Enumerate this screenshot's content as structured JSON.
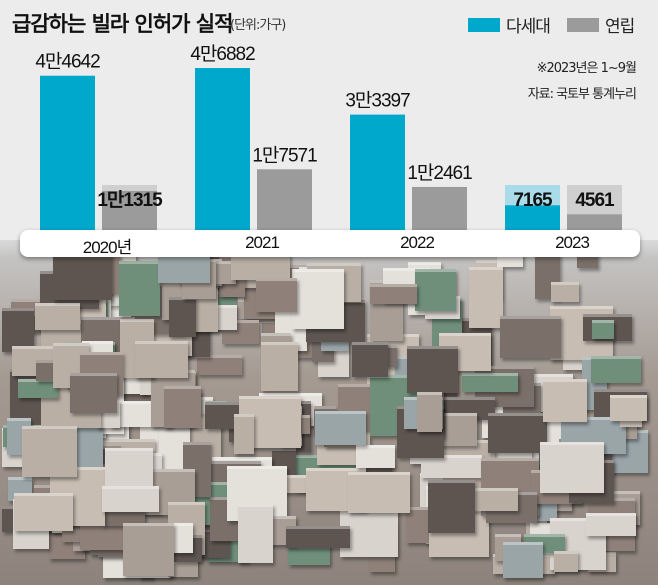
{
  "chart_data": {
    "type": "bar",
    "title": "급감하는 빌라 인허가 실적",
    "unit": "(단위:가구)",
    "categories": [
      "2020년",
      "2021",
      "2022",
      "2023"
    ],
    "series": [
      {
        "name": "다세대",
        "color": "#00a8cc",
        "values": [
          44642,
          46882,
          33397,
          7165
        ],
        "labels": [
          "4만4642",
          "4만6882",
          "3만3397",
          "7165"
        ]
      },
      {
        "name": "연립",
        "color": "#9b9b9b",
        "values": [
          11315,
          17571,
          12461,
          4561
        ],
        "labels": [
          "1만1315",
          "1만7571",
          "1만2461",
          "4561"
        ]
      }
    ],
    "ylim": [
      0,
      46882
    ],
    "legend": "top-right",
    "grid": false,
    "notes": [
      "※2023년은 1~9월",
      "자료: 국토부 통계누리"
    ]
  }
}
